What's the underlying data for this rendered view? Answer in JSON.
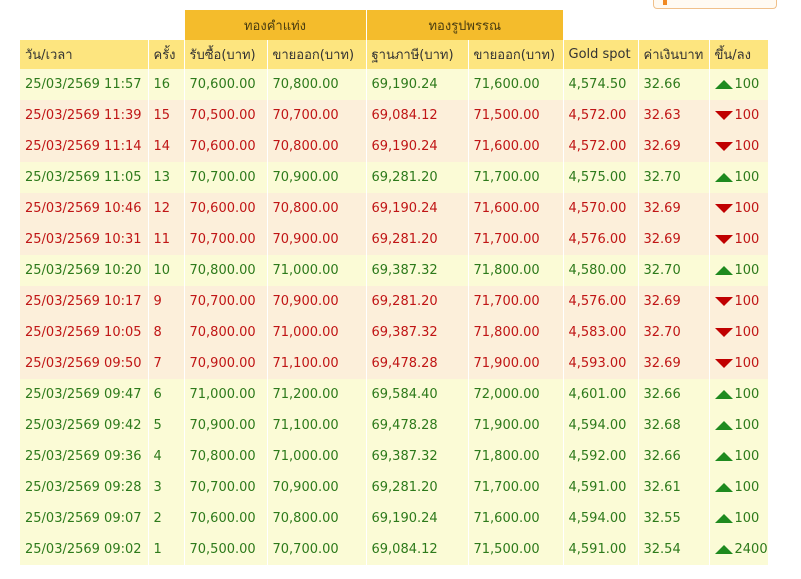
{
  "header": {
    "group_bar": "ทองคำแท่ง",
    "group_ornament": "ทองรูปพรรณ",
    "col_datetime": "วัน/เวลา",
    "col_round": "ครั้ง",
    "col_bar_buy": "รับซื้อ(บาท)",
    "col_bar_sell": "ขายออก(บาท)",
    "col_orn_base": "ฐานภาษี(บาท)",
    "col_orn_sell": "ขายออก(บาท)",
    "col_gold_spot": "Gold spot",
    "col_thb": "ค่าเงินบาท",
    "col_change": "ขึ้น/ลง"
  },
  "colors": {
    "up_text": "#2d7a1b",
    "down_text": "#c01515",
    "up_row_bg": "#fbfbd6",
    "down_row_bg": "#fcefda",
    "group_header_bg": "#f4bc2c",
    "sub_header_bg": "#fde57f"
  },
  "rows": [
    {
      "datetime": "25/03/2569 11:57",
      "round": "16",
      "bar_buy": "70,600.00",
      "bar_sell": "70,800.00",
      "orn_base": "69,190.24",
      "orn_sell": "71,600.00",
      "gold_spot": "4,574.50",
      "thb": "32.66",
      "dir": "up",
      "change": "100"
    },
    {
      "datetime": "25/03/2569 11:39",
      "round": "15",
      "bar_buy": "70,500.00",
      "bar_sell": "70,700.00",
      "orn_base": "69,084.12",
      "orn_sell": "71,500.00",
      "gold_spot": "4,572.00",
      "thb": "32.63",
      "dir": "down",
      "change": "100"
    },
    {
      "datetime": "25/03/2569 11:14",
      "round": "14",
      "bar_buy": "70,600.00",
      "bar_sell": "70,800.00",
      "orn_base": "69,190.24",
      "orn_sell": "71,600.00",
      "gold_spot": "4,572.00",
      "thb": "32.69",
      "dir": "down",
      "change": "100"
    },
    {
      "datetime": "25/03/2569 11:05",
      "round": "13",
      "bar_buy": "70,700.00",
      "bar_sell": "70,900.00",
      "orn_base": "69,281.20",
      "orn_sell": "71,700.00",
      "gold_spot": "4,575.00",
      "thb": "32.70",
      "dir": "up",
      "change": "100"
    },
    {
      "datetime": "25/03/2569 10:46",
      "round": "12",
      "bar_buy": "70,600.00",
      "bar_sell": "70,800.00",
      "orn_base": "69,190.24",
      "orn_sell": "71,600.00",
      "gold_spot": "4,570.00",
      "thb": "32.69",
      "dir": "down",
      "change": "100"
    },
    {
      "datetime": "25/03/2569 10:31",
      "round": "11",
      "bar_buy": "70,700.00",
      "bar_sell": "70,900.00",
      "orn_base": "69,281.20",
      "orn_sell": "71,700.00",
      "gold_spot": "4,576.00",
      "thb": "32.69",
      "dir": "down",
      "change": "100"
    },
    {
      "datetime": "25/03/2569 10:20",
      "round": "10",
      "bar_buy": "70,800.00",
      "bar_sell": "71,000.00",
      "orn_base": "69,387.32",
      "orn_sell": "71,800.00",
      "gold_spot": "4,580.00",
      "thb": "32.70",
      "dir": "up",
      "change": "100"
    },
    {
      "datetime": "25/03/2569 10:17",
      "round": "9",
      "bar_buy": "70,700.00",
      "bar_sell": "70,900.00",
      "orn_base": "69,281.20",
      "orn_sell": "71,700.00",
      "gold_spot": "4,576.00",
      "thb": "32.69",
      "dir": "down",
      "change": "100"
    },
    {
      "datetime": "25/03/2569 10:05",
      "round": "8",
      "bar_buy": "70,800.00",
      "bar_sell": "71,000.00",
      "orn_base": "69,387.32",
      "orn_sell": "71,800.00",
      "gold_spot": "4,583.00",
      "thb": "32.70",
      "dir": "down",
      "change": "100"
    },
    {
      "datetime": "25/03/2569 09:50",
      "round": "7",
      "bar_buy": "70,900.00",
      "bar_sell": "71,100.00",
      "orn_base": "69,478.28",
      "orn_sell": "71,900.00",
      "gold_spot": "4,593.00",
      "thb": "32.69",
      "dir": "down",
      "change": "100"
    },
    {
      "datetime": "25/03/2569 09:47",
      "round": "6",
      "bar_buy": "71,000.00",
      "bar_sell": "71,200.00",
      "orn_base": "69,584.40",
      "orn_sell": "72,000.00",
      "gold_spot": "4,601.00",
      "thb": "32.66",
      "dir": "up",
      "change": "100"
    },
    {
      "datetime": "25/03/2569 09:42",
      "round": "5",
      "bar_buy": "70,900.00",
      "bar_sell": "71,100.00",
      "orn_base": "69,478.28",
      "orn_sell": "71,900.00",
      "gold_spot": "4,594.00",
      "thb": "32.68",
      "dir": "up",
      "change": "100"
    },
    {
      "datetime": "25/03/2569 09:36",
      "round": "4",
      "bar_buy": "70,800.00",
      "bar_sell": "71,000.00",
      "orn_base": "69,387.32",
      "orn_sell": "71,800.00",
      "gold_spot": "4,592.00",
      "thb": "32.66",
      "dir": "up",
      "change": "100"
    },
    {
      "datetime": "25/03/2569 09:28",
      "round": "3",
      "bar_buy": "70,700.00",
      "bar_sell": "70,900.00",
      "orn_base": "69,281.20",
      "orn_sell": "71,700.00",
      "gold_spot": "4,591.00",
      "thb": "32.61",
      "dir": "up",
      "change": "100"
    },
    {
      "datetime": "25/03/2569 09:07",
      "round": "2",
      "bar_buy": "70,600.00",
      "bar_sell": "70,800.00",
      "orn_base": "69,190.24",
      "orn_sell": "71,600.00",
      "gold_spot": "4,594.00",
      "thb": "32.55",
      "dir": "up",
      "change": "100"
    },
    {
      "datetime": "25/03/2569 09:02",
      "round": "1",
      "bar_buy": "70,500.00",
      "bar_sell": "70,700.00",
      "orn_base": "69,084.12",
      "orn_sell": "71,500.00",
      "gold_spot": "4,591.00",
      "thb": "32.54",
      "dir": "up",
      "change": "2400"
    }
  ]
}
